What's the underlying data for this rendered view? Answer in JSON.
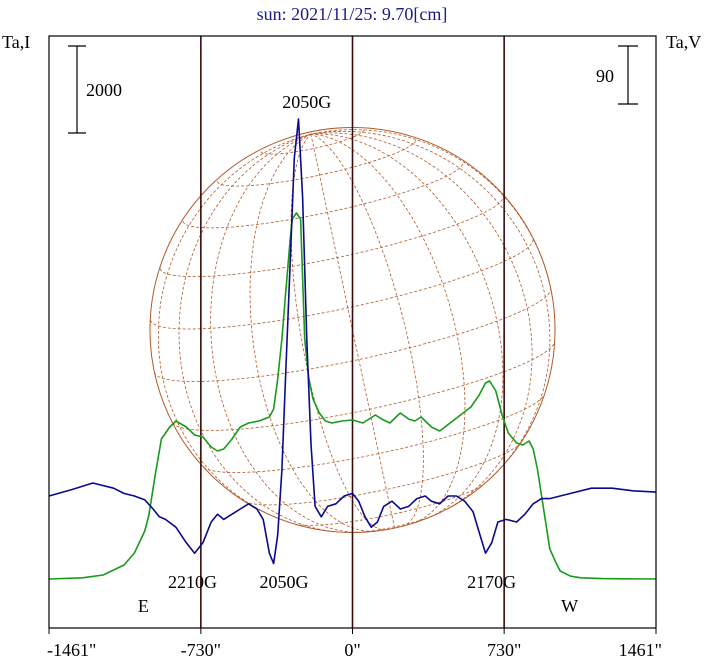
{
  "chart_data": {
    "type": "line",
    "title": "sun: 2021/11/25: 9.70[cm]",
    "left_axis_label": "Ta,I",
    "right_axis_label": "Ta,V",
    "left_scale_bar_label": "2000",
    "right_scale_bar_label": "90",
    "x_ticks": [
      {
        "value": -1461,
        "label": "-1461\""
      },
      {
        "value": -730,
        "label": "-730\""
      },
      {
        "value": 0,
        "label": "0\""
      },
      {
        "value": 730,
        "label": "730\""
      },
      {
        "value": 1461,
        "label": "1461\""
      }
    ],
    "x_range": [
      -1461,
      1461
    ],
    "vertical_markers": [
      -730,
      0,
      730
    ],
    "limb_markers": [
      {
        "label": "E",
        "x": -978
      },
      {
        "label": "W",
        "x": 978
      }
    ],
    "disk_radius_arcsec": 975,
    "colors": {
      "intensity": "#1a9a1a",
      "polarization": "#0a0a8c",
      "disk": "#b35a2a",
      "frame": "#000000",
      "marker": "#3a0a0a",
      "title": "#1a1a8c"
    },
    "annotations": [
      {
        "text": "2050G",
        "x": -220,
        "y": 1.0
      },
      {
        "text": "2210G",
        "x": -770,
        "y": -1.2
      },
      {
        "text": "2050G",
        "x": -330,
        "y": -1.2
      },
      {
        "text": "2170G",
        "x": 670,
        "y": -1.2
      }
    ],
    "series": [
      {
        "name": "Ta,I",
        "key": "intensity",
        "points": [
          [
            -1461,
            0
          ],
          [
            -1300,
            6
          ],
          [
            -1200,
            20
          ],
          [
            -1100,
            70
          ],
          [
            -1050,
            130
          ],
          [
            -1000,
            240
          ],
          [
            -980,
            320
          ],
          [
            -950,
            520
          ],
          [
            -920,
            700
          ],
          [
            -880,
            760
          ],
          [
            -850,
            790
          ],
          [
            -800,
            760
          ],
          [
            -760,
            720
          ],
          [
            -720,
            710
          ],
          [
            -680,
            660
          ],
          [
            -650,
            640
          ],
          [
            -620,
            650
          ],
          [
            -580,
            700
          ],
          [
            -540,
            760
          ],
          [
            -500,
            780
          ],
          [
            -450,
            790
          ],
          [
            -400,
            810
          ],
          [
            -380,
            850
          ],
          [
            -360,
            1000
          ],
          [
            -340,
            1200
          ],
          [
            -320,
            1450
          ],
          [
            -300,
            1700
          ],
          [
            -290,
            1800
          ],
          [
            -270,
            1830
          ],
          [
            -250,
            1800
          ],
          [
            -230,
            1200
          ],
          [
            -210,
            1000
          ],
          [
            -190,
            900
          ],
          [
            -160,
            830
          ],
          [
            -130,
            790
          ],
          [
            -100,
            780
          ],
          [
            -50,
            790
          ],
          [
            0,
            795
          ],
          [
            50,
            780
          ],
          [
            80,
            800
          ],
          [
            110,
            820
          ],
          [
            140,
            800
          ],
          [
            180,
            780
          ],
          [
            200,
            800
          ],
          [
            230,
            830
          ],
          [
            270,
            800
          ],
          [
            300,
            790
          ],
          [
            330,
            810
          ],
          [
            380,
            760
          ],
          [
            420,
            740
          ],
          [
            470,
            780
          ],
          [
            520,
            820
          ],
          [
            570,
            860
          ],
          [
            610,
            920
          ],
          [
            640,
            980
          ],
          [
            660,
            990
          ],
          [
            690,
            940
          ],
          [
            720,
            820
          ],
          [
            750,
            730
          ],
          [
            790,
            680
          ],
          [
            820,
            670
          ],
          [
            850,
            690
          ],
          [
            870,
            650
          ],
          [
            890,
            550
          ],
          [
            920,
            350
          ],
          [
            950,
            150
          ],
          [
            980,
            80
          ],
          [
            1000,
            40
          ],
          [
            1050,
            14
          ],
          [
            1100,
            6
          ],
          [
            1200,
            2
          ],
          [
            1300,
            1
          ],
          [
            1461,
            0
          ]
        ]
      },
      {
        "name": "Ta,V",
        "key": "polarization",
        "points": [
          [
            -1461,
            0
          ],
          [
            -1350,
            5
          ],
          [
            -1250,
            10
          ],
          [
            -1150,
            6
          ],
          [
            -1100,
            2
          ],
          [
            -1050,
            0
          ],
          [
            -1000,
            -3
          ],
          [
            -960,
            -10
          ],
          [
            -930,
            -16
          ],
          [
            -900,
            -18
          ],
          [
            -850,
            -24
          ],
          [
            -800,
            -36
          ],
          [
            -760,
            -44
          ],
          [
            -720,
            -36
          ],
          [
            -680,
            -20
          ],
          [
            -650,
            -14
          ],
          [
            -620,
            -18
          ],
          [
            -580,
            -14
          ],
          [
            -540,
            -10
          ],
          [
            -500,
            -6
          ],
          [
            -460,
            -10
          ],
          [
            -430,
            -18
          ],
          [
            -400,
            -44
          ],
          [
            -380,
            -52
          ],
          [
            -360,
            -30
          ],
          [
            -340,
            20
          ],
          [
            -320,
            100
          ],
          [
            -300,
            180
          ],
          [
            -280,
            260
          ],
          [
            -260,
            290
          ],
          [
            -240,
            230
          ],
          [
            -220,
            120
          ],
          [
            -200,
            40
          ],
          [
            -180,
            -8
          ],
          [
            -150,
            -16
          ],
          [
            -120,
            -8
          ],
          [
            -80,
            -6
          ],
          [
            -40,
            0
          ],
          [
            0,
            2
          ],
          [
            30,
            -4
          ],
          [
            60,
            -16
          ],
          [
            90,
            -24
          ],
          [
            120,
            -20
          ],
          [
            150,
            -8
          ],
          [
            190,
            -4
          ],
          [
            230,
            -10
          ],
          [
            270,
            -8
          ],
          [
            310,
            -2
          ],
          [
            350,
            0
          ],
          [
            380,
            -4
          ],
          [
            420,
            -6
          ],
          [
            460,
            0
          ],
          [
            500,
            0
          ],
          [
            540,
            -4
          ],
          [
            580,
            -12
          ],
          [
            610,
            -28
          ],
          [
            640,
            -44
          ],
          [
            670,
            -36
          ],
          [
            700,
            -20
          ],
          [
            740,
            -18
          ],
          [
            790,
            -20
          ],
          [
            830,
            -14
          ],
          [
            870,
            -6
          ],
          [
            910,
            -2
          ],
          [
            950,
            -2
          ],
          [
            1000,
            0
          ],
          [
            1050,
            2
          ],
          [
            1150,
            6
          ],
          [
            1250,
            6
          ],
          [
            1350,
            4
          ],
          [
            1461,
            3
          ]
        ]
      }
    ]
  }
}
